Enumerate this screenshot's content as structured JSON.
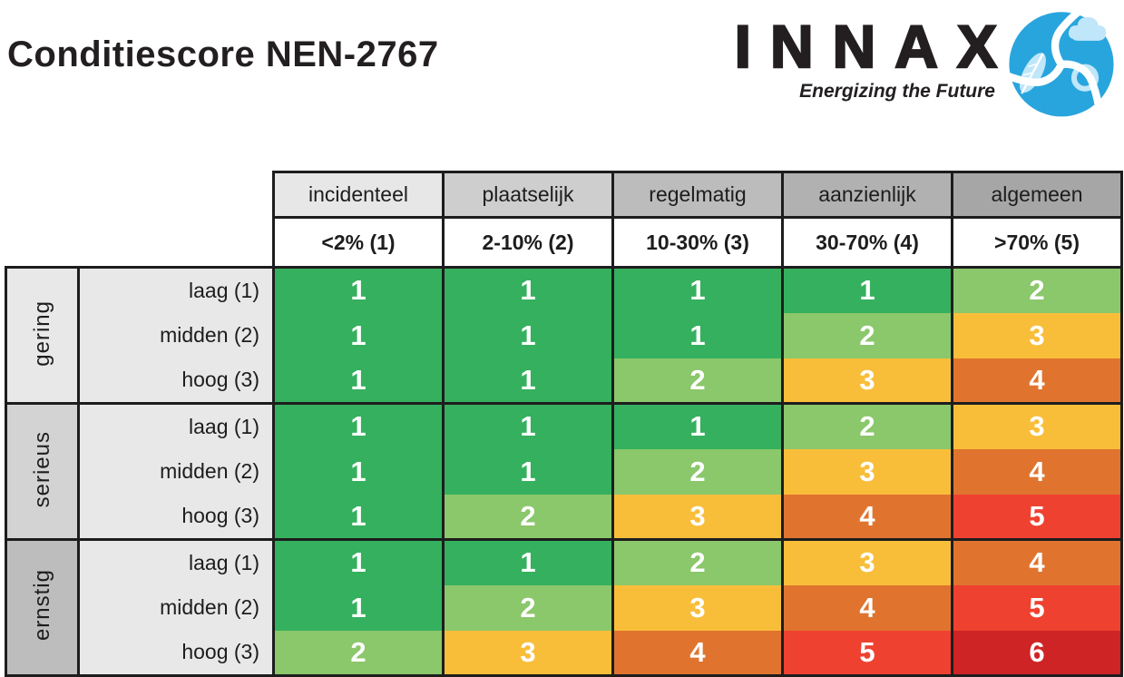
{
  "page": {
    "title": "Conditiescore NEN-2767"
  },
  "logo": {
    "wordmark": "INNAX",
    "tagline": "Energizing the Future",
    "emblem_icon": "innax-swirl-emblem",
    "brand_blue": "#29a5dd",
    "brand_light_blue": "#bfe7f9",
    "text_color": "#231f20"
  },
  "chart_data": {
    "type": "heatmap",
    "title": "Conditiescore NEN-2767",
    "columns": [
      {
        "label": "incidenteel",
        "range": "<2% (1)"
      },
      {
        "label": "plaatselijk",
        "range": "2-10% (2)"
      },
      {
        "label": "regelmatig",
        "range": "10-30% (3)"
      },
      {
        "label": "aanzienlijk",
        "range": "30-70% (4)"
      },
      {
        "label": "algemeen",
        "range": ">70% (5)"
      }
    ],
    "row_groups": [
      {
        "label": "gering",
        "shade": "#e8e8e8",
        "rows": [
          {
            "label": "laag (1)",
            "values": [
              1,
              1,
              1,
              1,
              2
            ]
          },
          {
            "label": "midden (2)",
            "values": [
              1,
              1,
              1,
              2,
              3
            ]
          },
          {
            "label": "hoog (3)",
            "values": [
              1,
              1,
              2,
              3,
              4
            ]
          }
        ]
      },
      {
        "label": "serieus",
        "shade": "#d3d3d3",
        "rows": [
          {
            "label": "laag (1)",
            "values": [
              1,
              1,
              1,
              2,
              3
            ]
          },
          {
            "label": "midden (2)",
            "values": [
              1,
              1,
              2,
              3,
              4
            ]
          },
          {
            "label": "hoog (3)",
            "values": [
              1,
              2,
              3,
              4,
              5
            ]
          }
        ]
      },
      {
        "label": "ernstig",
        "shade": "#bdbdbd",
        "rows": [
          {
            "label": "laag (1)",
            "values": [
              1,
              1,
              2,
              3,
              4
            ]
          },
          {
            "label": "midden (2)",
            "values": [
              1,
              2,
              3,
              4,
              5
            ]
          },
          {
            "label": "hoog (3)",
            "values": [
              2,
              3,
              4,
              5,
              6
            ]
          }
        ]
      }
    ],
    "header_shades": [
      "#e7e7e7",
      "#cecece",
      "#bcbcbc",
      "#b1b1b1",
      "#a6a6a6"
    ],
    "row_label_shade": "#e8e8e8",
    "value_colors": {
      "1": "#35b05e",
      "2": "#8bc76b",
      "3": "#f8be3a",
      "4": "#e0742f",
      "5": "#ef4130",
      "6": "#cf2425"
    },
    "grid_border_color": "#1d1d1d",
    "cell_text_color": "#ffffff"
  }
}
